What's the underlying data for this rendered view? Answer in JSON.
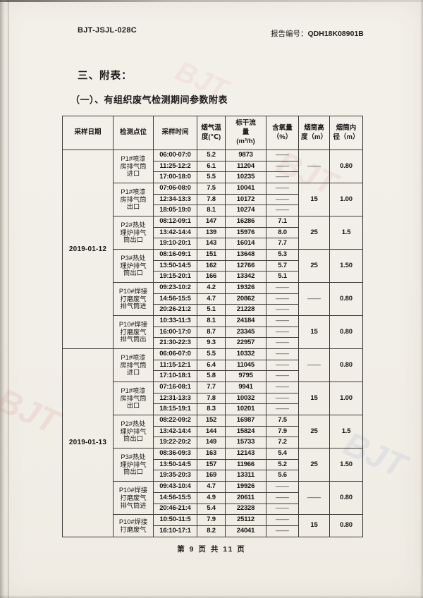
{
  "header": {
    "doc_code": "BJT-JSJL-028C",
    "report_label": "报告编号：",
    "report_number": "QDH18K08901B"
  },
  "titles": {
    "section": "三、附表：",
    "subsection": "（一）、有组织废气检测期间参数附表"
  },
  "table": {
    "headers": [
      "采样日期",
      "检测点位",
      "采样时间",
      "烟气温\n度(℃)",
      "标干流\n量\n(m³/h)",
      "含氧量\n（%）",
      "烟筒高\n度（m）",
      "烟筒内\n径（m）"
    ],
    "date_groups": [
      {
        "date": "2019-01-12",
        "locations": [
          {
            "name": "P1#喷漆\n房排气筒\n进口",
            "stack_height": "——",
            "inner_diameter": "0.80",
            "rows": [
              {
                "time": "06:00-07:0",
                "temp": "5.2",
                "flow": "9873",
                "oxygen": "——"
              },
              {
                "time": "11:25-12:2",
                "temp": "6.1",
                "flow": "11204",
                "oxygen": "——"
              },
              {
                "time": "17:00-18:0",
                "temp": "5.5",
                "flow": "10235",
                "oxygen": "——"
              }
            ]
          },
          {
            "name": "P1#喷漆\n房排气筒\n出口",
            "stack_height": "15",
            "inner_diameter": "1.00",
            "rows": [
              {
                "time": "07:06-08:0",
                "temp": "7.5",
                "flow": "10041",
                "oxygen": "——"
              },
              {
                "time": "12:34-13:3",
                "temp": "7.8",
                "flow": "10172",
                "oxygen": "——"
              },
              {
                "time": "18:05-19:0",
                "temp": "8.1",
                "flow": "10274",
                "oxygen": "——"
              }
            ]
          },
          {
            "name": "P2#热处\n理炉排气\n筒出口",
            "stack_height": "25",
            "inner_diameter": "1.5",
            "rows": [
              {
                "time": "08:12-09:1",
                "temp": "147",
                "flow": "16286",
                "oxygen": "7.1"
              },
              {
                "time": "13:42-14:4",
                "temp": "139",
                "flow": "15976",
                "oxygen": "8.0"
              },
              {
                "time": "19:10-20:1",
                "temp": "143",
                "flow": "16014",
                "oxygen": "7.7"
              }
            ]
          },
          {
            "name": "P3#热处\n理炉排气\n筒出口",
            "stack_height": "25",
            "inner_diameter": "1.50",
            "rows": [
              {
                "time": "08:16-09:1",
                "temp": "151",
                "flow": "13648",
                "oxygen": "5.3"
              },
              {
                "time": "13:50-14:5",
                "temp": "162",
                "flow": "12766",
                "oxygen": "5.7"
              },
              {
                "time": "19:15-20:1",
                "temp": "166",
                "flow": "13342",
                "oxygen": "5.1"
              }
            ]
          },
          {
            "name": "P10#焊接\n打磨废气\n排气筒进",
            "stack_height": "——",
            "inner_diameter": "0.80",
            "rows": [
              {
                "time": "09:23-10:2",
                "temp": "4.2",
                "flow": "19326",
                "oxygen": "——"
              },
              {
                "time": "14:56-15:5",
                "temp": "4.7",
                "flow": "20862",
                "oxygen": "——"
              },
              {
                "time": "20:26-21:2",
                "temp": "5.1",
                "flow": "21228",
                "oxygen": "——"
              }
            ]
          },
          {
            "name": "P10#焊接\n打磨废气\n排气筒出",
            "stack_height": "15",
            "inner_diameter": "0.80",
            "rows": [
              {
                "time": "10:33-11:3",
                "temp": "8.1",
                "flow": "24184",
                "oxygen": "——"
              },
              {
                "time": "16:00-17:0",
                "temp": "8.7",
                "flow": "23345",
                "oxygen": "——"
              },
              {
                "time": "21:30-22:3",
                "temp": "9.3",
                "flow": "22957",
                "oxygen": "——"
              }
            ]
          }
        ]
      },
      {
        "date": "2019-01-13",
        "locations": [
          {
            "name": "P1#喷漆\n房排气筒\n进口",
            "stack_height": "——",
            "inner_diameter": "0.80",
            "rows": [
              {
                "time": "06:06-07:0",
                "temp": "5.5",
                "flow": "10332",
                "oxygen": "——"
              },
              {
                "time": "11:15-12:1",
                "temp": "6.4",
                "flow": "11045",
                "oxygen": "——"
              },
              {
                "time": "17:10-18:1",
                "temp": "5.8",
                "flow": "9795",
                "oxygen": "——"
              }
            ]
          },
          {
            "name": "P1#喷漆\n房排气筒\n出口",
            "stack_height": "15",
            "inner_diameter": "1.00",
            "rows": [
              {
                "time": "07:16-08:1",
                "temp": "7.7",
                "flow": "9941",
                "oxygen": "——"
              },
              {
                "time": "12:31-13:3",
                "temp": "7.8",
                "flow": "10032",
                "oxygen": "——"
              },
              {
                "time": "18:15-19:1",
                "temp": "8.3",
                "flow": "10201",
                "oxygen": "——"
              }
            ]
          },
          {
            "name": "P2#热处\n理炉排气\n筒出口",
            "stack_height": "25",
            "inner_diameter": "1.5",
            "rows": [
              {
                "time": "08:22-09:2",
                "temp": "152",
                "flow": "16987",
                "oxygen": "7.5"
              },
              {
                "time": "13:42-14:4",
                "temp": "144",
                "flow": "15824",
                "oxygen": "7.9"
              },
              {
                "time": "19:22-20:2",
                "temp": "149",
                "flow": "15733",
                "oxygen": "7.2"
              }
            ]
          },
          {
            "name": "P3#热处\n理炉排气\n筒出口",
            "stack_height": "25",
            "inner_diameter": "1.50",
            "rows": [
              {
                "time": "08:36-09:3",
                "temp": "163",
                "flow": "12143",
                "oxygen": "5.4"
              },
              {
                "time": "13:50-14:5",
                "temp": "157",
                "flow": "11966",
                "oxygen": "5.2"
              },
              {
                "time": "19:35-20:3",
                "temp": "169",
                "flow": "13311",
                "oxygen": "5.6"
              }
            ]
          },
          {
            "name": "P10#焊接\n打磨废气\n排气筒进",
            "stack_height": "——",
            "inner_diameter": "0.80",
            "rows": [
              {
                "time": "09:43-10:4",
                "temp": "4.7",
                "flow": "19926",
                "oxygen": "——"
              },
              {
                "time": "14:56-15:5",
                "temp": "4.9",
                "flow": "20611",
                "oxygen": "——"
              },
              {
                "time": "20:46-21:4",
                "temp": "5.4",
                "flow": "22328",
                "oxygen": "——"
              }
            ]
          },
          {
            "name": "P10#焊接\n打磨废气",
            "stack_height": "15",
            "inner_diameter": "0.80",
            "rows": [
              {
                "time": "10:50-11:5",
                "temp": "7.9",
                "flow": "25112",
                "oxygen": "——"
              },
              {
                "time": "16:10-17:1",
                "temp": "8.2",
                "flow": "24041",
                "oxygen": "——"
              }
            ]
          }
        ]
      }
    ]
  },
  "footer": {
    "text": "第 9 页 共 11 页"
  },
  "watermark": {
    "text": "BJT"
  }
}
